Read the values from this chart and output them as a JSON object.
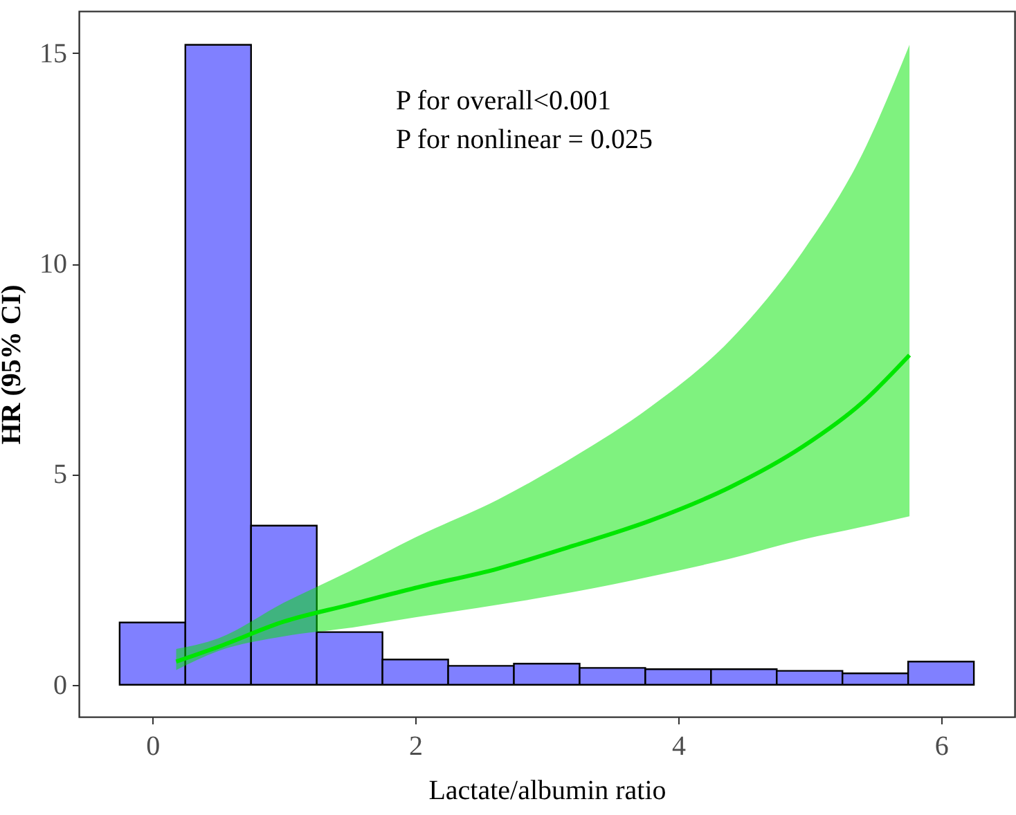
{
  "chart_data": {
    "type": "histogram",
    "xlabel": "Lactate/albumin ratio",
    "ylabel": "HR (95% CI)",
    "bins": [
      -0.25,
      0.25,
      0.75,
      1.25,
      1.75,
      2.25,
      2.75,
      3.25,
      3.75,
      4.25,
      4.75,
      5.25,
      5.75,
      6.25
    ],
    "values": [
      1.48,
      15.2,
      3.78,
      1.25,
      0.6,
      0.45,
      0.5,
      0.4,
      0.37,
      0.37,
      0.33,
      0.27,
      0.55
    ],
    "color": "#8080ff",
    "series": [
      {
        "type": "line",
        "color": "#00e600",
        "x": [
          0.18,
          0.5,
          1,
          1.5,
          2,
          2.63,
          3.2,
          3.79,
          4.4,
          4.95,
          5.4,
          5.76
        ],
        "values": [
          0.55,
          0.9,
          1.5,
          1.9,
          2.3,
          2.76,
          3.3,
          3.9,
          4.7,
          5.66,
          6.7,
          7.83
        ],
        "lower": [
          0.35,
          0.8,
          1.15,
          1.35,
          1.6,
          1.9,
          2.2,
          2.57,
          3.0,
          3.45,
          3.75,
          4.0
        ],
        "upper": [
          0.85,
          1.1,
          1.95,
          2.7,
          3.5,
          4.4,
          5.4,
          6.6,
          8.2,
          10.3,
          12.6,
          15.2
        ]
      }
    ],
    "xlim": [
      -0.56,
      6.56
    ],
    "ylim": [
      -0.76,
      16.0
    ],
    "xticks": [
      0,
      2,
      4,
      6
    ],
    "yticks": [
      0,
      5,
      10,
      15
    ],
    "grid": false,
    "annotations": [
      "P for overall<0.001",
      "P for nonlinear = 0.025"
    ]
  }
}
